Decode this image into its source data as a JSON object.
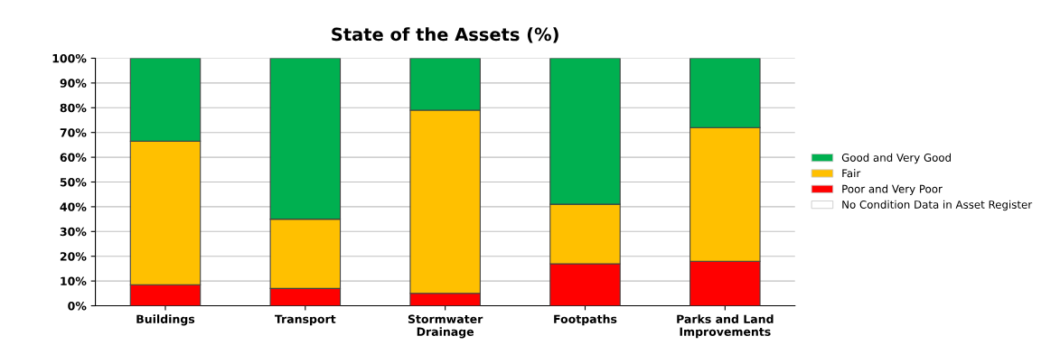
{
  "chart_data": {
    "type": "bar",
    "title": "State of the Assets (%)",
    "categories": [
      "Buildings",
      "Transport",
      "Stormwater\nDrainage",
      "Footpaths",
      "Parks and Land\nImprovements"
    ],
    "stacked": true,
    "series": [
      {
        "name": "No Condition Data in Asset Register",
        "color": "#ffffff",
        "values": [
          0,
          0,
          0,
          0,
          0
        ]
      },
      {
        "name": "Poor and Very Poor",
        "color": "#ff0000",
        "values": [
          8.5,
          7,
          5,
          17,
          18
        ]
      },
      {
        "name": "Fair",
        "color": "#ffc000",
        "values": [
          58,
          28,
          74,
          24,
          54
        ]
      },
      {
        "name": "Good and Very Good",
        "color": "#00b050",
        "values": [
          33.5,
          65,
          21,
          59,
          28
        ]
      }
    ],
    "ylim": [
      0,
      100
    ],
    "yticks": [
      {
        "value": 0,
        "label": "0%"
      },
      {
        "value": 10,
        "label": "10%"
      },
      {
        "value": 20,
        "label": "20%"
      },
      {
        "value": 30,
        "label": "30%"
      },
      {
        "value": 40,
        "label": "40%"
      },
      {
        "value": 50,
        "label": "50%"
      },
      {
        "value": 60,
        "label": "60%"
      },
      {
        "value": 70,
        "label": "70%"
      },
      {
        "value": 80,
        "label": "80%"
      },
      {
        "value": 90,
        "label": "90%"
      },
      {
        "value": 100,
        "label": "100%"
      }
    ],
    "grid": "y",
    "legend": "right"
  }
}
